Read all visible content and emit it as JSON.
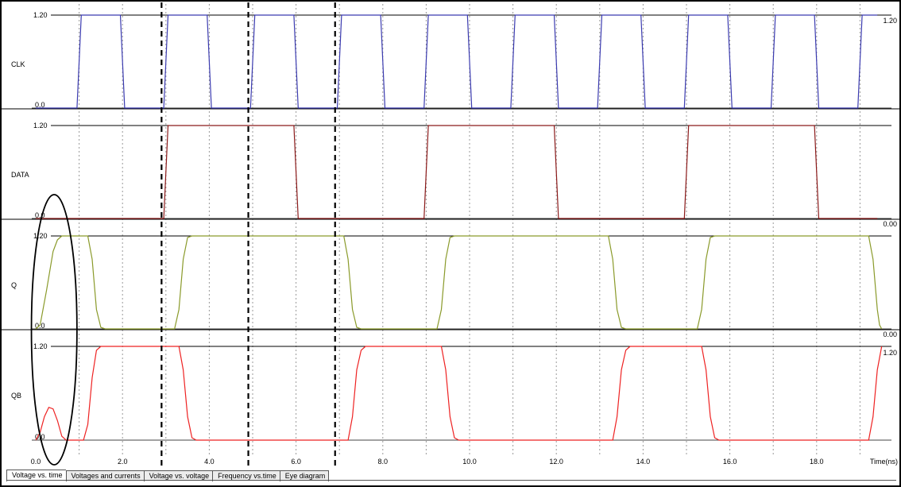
{
  "tabs": [
    {
      "label": "Voltage vs. time",
      "active": true
    },
    {
      "label": "Voltages and currents",
      "active": false
    },
    {
      "label": "Voltage vs. voltage",
      "active": false
    },
    {
      "label": "Frequency vs.time",
      "active": false
    },
    {
      "label": "Eye diagram",
      "active": false
    }
  ],
  "chart_data": {
    "type": "line",
    "xlabel": "Time(ns)",
    "xlim": [
      0,
      19.5
    ],
    "x_ticks": [
      "0.0",
      "2.0",
      "4.0",
      "6.0",
      "8.0",
      "10.0",
      "12.0",
      "14.0",
      "16.0",
      "18.0"
    ],
    "grid": true,
    "colors": {
      "CLK": "#3b3bb0",
      "DATA": "#8b1a1a",
      "Q": "#8a9a2a",
      "QB": "#ee2222",
      "grid": "#999999"
    },
    "series": [
      {
        "name": "CLK",
        "ymin_label": "0.0",
        "ymax_label": "1.20",
        "right_label": "1.20",
        "points": [
          [
            0,
            0
          ],
          [
            0.95,
            0
          ],
          [
            1.05,
            1.2
          ],
          [
            1.95,
            1.2
          ],
          [
            2.05,
            0
          ],
          [
            2.95,
            0
          ],
          [
            3.05,
            1.2
          ],
          [
            3.95,
            1.2
          ],
          [
            4.05,
            0
          ],
          [
            4.95,
            0
          ],
          [
            5.05,
            1.2
          ],
          [
            5.95,
            1.2
          ],
          [
            6.05,
            0
          ],
          [
            6.95,
            0
          ],
          [
            7.05,
            1.2
          ],
          [
            7.95,
            1.2
          ],
          [
            8.05,
            0
          ],
          [
            8.95,
            0
          ],
          [
            9.05,
            1.2
          ],
          [
            9.95,
            1.2
          ],
          [
            10.05,
            0
          ],
          [
            10.95,
            0
          ],
          [
            11.05,
            1.2
          ],
          [
            11.95,
            1.2
          ],
          [
            12.05,
            0
          ],
          [
            12.95,
            0
          ],
          [
            13.05,
            1.2
          ],
          [
            13.95,
            1.2
          ],
          [
            14.05,
            0
          ],
          [
            14.95,
            0
          ],
          [
            15.05,
            1.2
          ],
          [
            15.95,
            1.2
          ],
          [
            16.05,
            0
          ],
          [
            16.95,
            0
          ],
          [
            17.05,
            1.2
          ],
          [
            17.95,
            1.2
          ],
          [
            18.05,
            0
          ],
          [
            18.95,
            0
          ],
          [
            19.05,
            1.2
          ],
          [
            19.4,
            1.2
          ]
        ]
      },
      {
        "name": "DATA",
        "ymin_label": "0.0",
        "ymax_label": "1.20",
        "right_label": "0.00",
        "points": [
          [
            0,
            0
          ],
          [
            2.95,
            0
          ],
          [
            3.05,
            1.2
          ],
          [
            5.95,
            1.2
          ],
          [
            6.05,
            0
          ],
          [
            8.95,
            0
          ],
          [
            9.05,
            1.2
          ],
          [
            11.95,
            1.2
          ],
          [
            12.05,
            0
          ],
          [
            14.95,
            0
          ],
          [
            15.05,
            1.2
          ],
          [
            17.95,
            1.2
          ],
          [
            18.05,
            0
          ],
          [
            19.4,
            0
          ]
        ]
      },
      {
        "name": "Q",
        "ymin_label": "0.0",
        "ymax_label": "1.20",
        "right_label": "0.00",
        "points": [
          [
            0,
            0
          ],
          [
            0.1,
            0.05
          ],
          [
            0.25,
            0.5
          ],
          [
            0.4,
            1.0
          ],
          [
            0.5,
            1.15
          ],
          [
            0.6,
            1.2
          ],
          [
            1.2,
            1.2
          ],
          [
            1.3,
            0.9
          ],
          [
            1.4,
            0.25
          ],
          [
            1.5,
            0.02
          ],
          [
            1.6,
            0
          ],
          [
            3.2,
            0
          ],
          [
            3.3,
            0.25
          ],
          [
            3.4,
            0.9
          ],
          [
            3.5,
            1.18
          ],
          [
            3.6,
            1.2
          ],
          [
            7.1,
            1.2
          ],
          [
            7.2,
            0.9
          ],
          [
            7.3,
            0.25
          ],
          [
            7.4,
            0.02
          ],
          [
            7.5,
            0
          ],
          [
            9.25,
            0
          ],
          [
            9.35,
            0.25
          ],
          [
            9.45,
            0.9
          ],
          [
            9.55,
            1.18
          ],
          [
            9.65,
            1.2
          ],
          [
            13.2,
            1.2
          ],
          [
            13.3,
            0.9
          ],
          [
            13.4,
            0.25
          ],
          [
            13.5,
            0.02
          ],
          [
            13.6,
            0
          ],
          [
            15.25,
            0
          ],
          [
            15.35,
            0.25
          ],
          [
            15.45,
            0.9
          ],
          [
            15.55,
            1.18
          ],
          [
            15.65,
            1.2
          ],
          [
            19.2,
            1.2
          ],
          [
            19.3,
            0.9
          ],
          [
            19.4,
            0.25
          ],
          [
            19.45,
            0.05
          ],
          [
            19.5,
            0
          ]
        ]
      },
      {
        "name": "QB",
        "ymin_label": "0.0",
        "ymax_label": "1.20",
        "right_label": "1.20",
        "points": [
          [
            0,
            0
          ],
          [
            0.1,
            0.1
          ],
          [
            0.2,
            0.3
          ],
          [
            0.3,
            0.42
          ],
          [
            0.4,
            0.4
          ],
          [
            0.5,
            0.25
          ],
          [
            0.6,
            0.05
          ],
          [
            0.7,
            0
          ],
          [
            1.1,
            0
          ],
          [
            1.2,
            0.2
          ],
          [
            1.3,
            0.8
          ],
          [
            1.4,
            1.15
          ],
          [
            1.5,
            1.2
          ],
          [
            3.3,
            1.2
          ],
          [
            3.4,
            0.9
          ],
          [
            3.5,
            0.3
          ],
          [
            3.6,
            0.03
          ],
          [
            3.7,
            0
          ],
          [
            7.2,
            0
          ],
          [
            7.3,
            0.3
          ],
          [
            7.4,
            0.9
          ],
          [
            7.5,
            1.15
          ],
          [
            7.6,
            1.2
          ],
          [
            9.35,
            1.2
          ],
          [
            9.45,
            0.9
          ],
          [
            9.55,
            0.3
          ],
          [
            9.65,
            0.03
          ],
          [
            9.75,
            0
          ],
          [
            13.3,
            0
          ],
          [
            13.4,
            0.3
          ],
          [
            13.5,
            0.9
          ],
          [
            13.6,
            1.15
          ],
          [
            13.7,
            1.2
          ],
          [
            15.35,
            1.2
          ],
          [
            15.45,
            0.9
          ],
          [
            15.55,
            0.3
          ],
          [
            15.65,
            0.03
          ],
          [
            15.75,
            0
          ],
          [
            19.2,
            0
          ],
          [
            19.3,
            0.3
          ],
          [
            19.4,
            0.9
          ],
          [
            19.5,
            1.2
          ]
        ]
      }
    ],
    "annotations": {
      "dashed_markers_x": [
        2.9,
        4.9,
        6.9
      ],
      "ellipse_region_x": [
        -0.1,
        0.95
      ]
    }
  }
}
